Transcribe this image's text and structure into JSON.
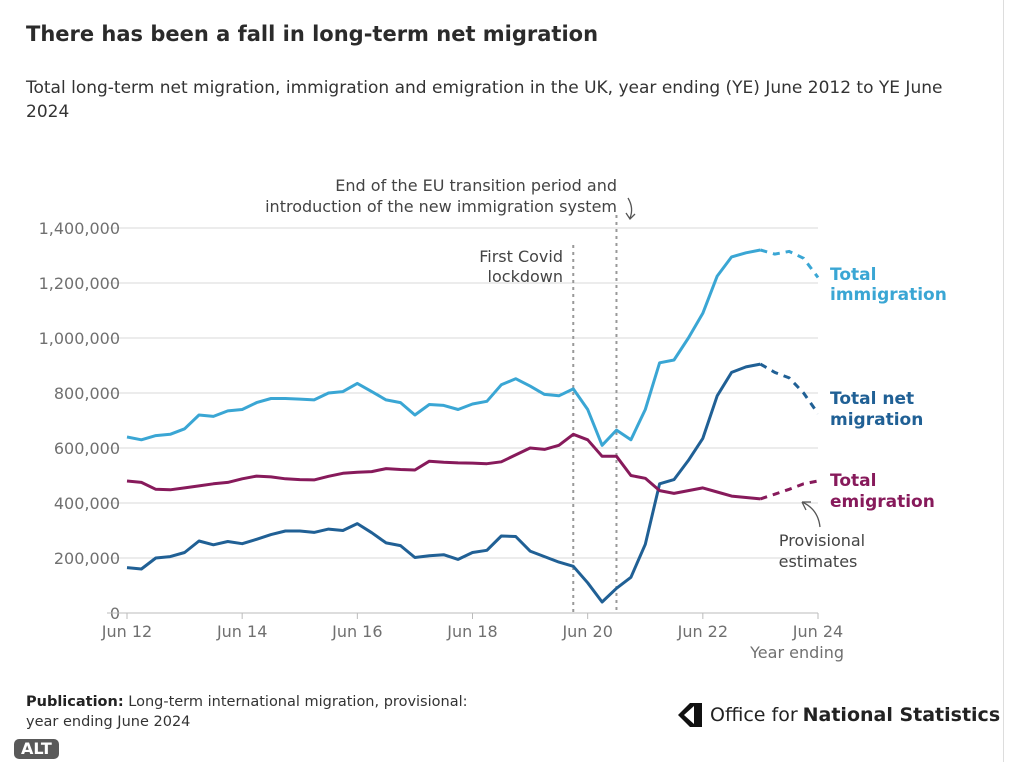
{
  "title": "There has been a fall in long-term net migration",
  "subtitle": "Total long-term net migration, immigration and emigration in the UK, year ending (YE) June 2012 to YE June 2024",
  "publication": {
    "label": "Publication:",
    "text": "Long-term international migration, provisional: year ending June 2024"
  },
  "logo": {
    "text_regular": "Office for",
    "text_bold": "National Statistics"
  },
  "alt_badge": "ALT",
  "chart_data": {
    "type": "line",
    "title": "There has been a fall in long-term net migration",
    "xlabel": "Year ending",
    "ylabel": "",
    "frequency": "quarterly",
    "start": "Jun 2012",
    "end": "Jun 2024",
    "provisional_from_index": 44,
    "ylim": [
      0,
      1400000
    ],
    "yticks": [
      0,
      200000,
      400000,
      600000,
      800000,
      1000000,
      1200000,
      1400000
    ],
    "ytick_labels": [
      "0",
      "200,000",
      "400,000",
      "600,000",
      "800,000",
      "1,000,000",
      "1,200,000",
      "1,400,000"
    ],
    "xtick_labels": [
      "Jun 12",
      "Jun 14",
      "Jun 16",
      "Jun 18",
      "Jun 20",
      "Jun 22",
      "Jun 24"
    ],
    "grid": true,
    "series": [
      {
        "name": "Total immigration",
        "label_line1": "Total",
        "label_line2": "immigration",
        "color": "#3aa6d4",
        "values": [
          640000,
          630000,
          645000,
          650000,
          670000,
          720000,
          715000,
          735000,
          740000,
          765000,
          780000,
          780000,
          778000,
          775000,
          800000,
          805000,
          835000,
          805000,
          775000,
          765000,
          720000,
          758000,
          755000,
          740000,
          760000,
          770000,
          830000,
          852000,
          825000,
          795000,
          790000,
          815000,
          740000,
          610000,
          665000,
          630000,
          740000,
          910000,
          920000,
          1000000,
          1090000,
          1225000,
          1295000,
          1310000,
          1320000,
          1305000,
          1315000,
          1290000,
          1220000
        ]
      },
      {
        "name": "Total net migration",
        "label_line1": "Total net",
        "label_line2": "migration",
        "color": "#206095",
        "values": [
          165000,
          160000,
          200000,
          205000,
          220000,
          262000,
          248000,
          260000,
          252000,
          268000,
          285000,
          298000,
          298000,
          293000,
          305000,
          300000,
          325000,
          292000,
          255000,
          245000,
          202000,
          208000,
          212000,
          195000,
          220000,
          228000,
          280000,
          278000,
          225000,
          205000,
          185000,
          170000,
          110000,
          40000,
          90000,
          130000,
          250000,
          470000,
          485000,
          555000,
          635000,
          790000,
          875000,
          895000,
          905000,
          875000,
          855000,
          800000,
          725000
        ]
      },
      {
        "name": "Total emigration",
        "label_line1": "Total",
        "label_line2": "emigration",
        "color": "#871a5b",
        "values": [
          480000,
          475000,
          450000,
          448000,
          455000,
          462000,
          470000,
          475000,
          488000,
          498000,
          495000,
          488000,
          485000,
          484000,
          497000,
          508000,
          512000,
          514000,
          525000,
          522000,
          520000,
          552000,
          548000,
          546000,
          545000,
          543000,
          550000,
          575000,
          600000,
          595000,
          610000,
          650000,
          630000,
          570000,
          570000,
          500000,
          490000,
          445000,
          435000,
          445000,
          455000,
          440000,
          425000,
          420000,
          415000,
          432000,
          450000,
          470000,
          480000
        ]
      }
    ],
    "annotations": [
      {
        "text_line1": "End of the EU transition period and",
        "text_line2": "introduction of the new immigration system",
        "date": "Dec 2020"
      },
      {
        "text_line1": "First Covid",
        "text_line2": "lockdown",
        "date": "Mar 2020"
      },
      {
        "text_line1": "Provisional",
        "text_line2": "estimates"
      }
    ]
  }
}
